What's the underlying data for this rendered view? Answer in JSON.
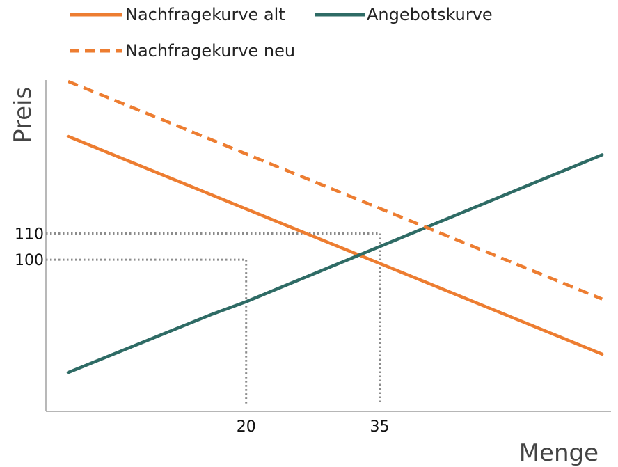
{
  "chart_data": {
    "type": "line",
    "title": "",
    "xlabel": "Menge",
    "ylabel": "Preis",
    "xlim": [
      -2.5,
      61
    ],
    "ylim": [
      42.2,
      168.5
    ],
    "grid": false,
    "legend_position": "top",
    "x_ticks": [
      {
        "value": 20,
        "label": "20"
      },
      {
        "value": 35,
        "label": "35"
      }
    ],
    "y_ticks": [
      {
        "value": 100,
        "label": "100"
      },
      {
        "value": 110,
        "label": "110"
      }
    ],
    "series": [
      {
        "name": "Nachfragekurve alt",
        "color": "#ED7D31",
        "dash": "solid",
        "points": [
          [
            0,
            147
          ],
          [
            60,
            64
          ]
        ]
      },
      {
        "name": "Angebotskurve",
        "color": "#2E6B65",
        "dash": "solid",
        "points": [
          [
            0,
            57
          ],
          [
            16,
            79
          ],
          [
            20,
            84
          ],
          [
            60,
            140
          ]
        ]
      },
      {
        "name": "Nachfragekurve neu",
        "color": "#ED7D31",
        "dash": "dashed",
        "points": [
          [
            0,
            168
          ],
          [
            60,
            85
          ]
        ]
      }
    ],
    "reference_lines": [
      {
        "kind": "horizontal",
        "y": 110,
        "x_end": 35
      },
      {
        "kind": "horizontal",
        "y": 100,
        "x_end": 20
      },
      {
        "kind": "vertical",
        "x": 20,
        "y_end": 100
      },
      {
        "kind": "vertical",
        "x": 35,
        "y_end": 110
      }
    ]
  }
}
